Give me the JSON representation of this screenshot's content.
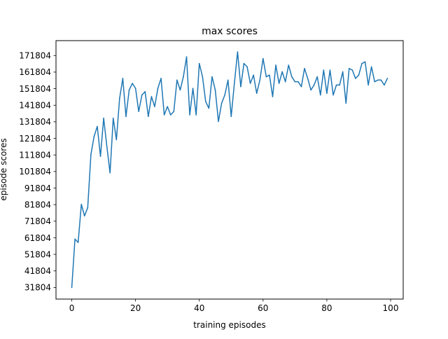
{
  "chart_data": {
    "type": "line",
    "title": "max scores",
    "xlabel": "training episodes",
    "ylabel": "episode scores",
    "xlim": [
      -4.95,
      103.95
    ],
    "ylim": [
      24803,
      180803
    ],
    "x_ticks": [
      0,
      20,
      40,
      60,
      80,
      100
    ],
    "y_ticks": [
      31804,
      41804,
      51804,
      61804,
      71804,
      81804,
      91804,
      101804,
      111804,
      121804,
      131804,
      141804,
      151804,
      161804,
      171804
    ],
    "line_color": "#1f77b4",
    "grid": false,
    "series": [
      {
        "x": [
          0,
          1,
          2,
          3,
          4,
          5,
          6,
          7,
          8,
          9,
          10,
          11,
          12,
          13,
          14,
          15,
          16,
          17,
          18,
          19,
          20,
          21,
          22,
          23,
          24,
          25,
          26,
          27,
          28,
          29,
          30,
          31,
          32,
          33,
          34,
          35,
          36,
          37,
          38,
          39,
          40,
          41,
          42,
          43,
          44,
          45,
          46,
          47,
          48,
          49,
          50,
          51,
          52,
          53,
          54,
          55,
          56,
          57,
          58,
          59,
          60,
          61,
          62,
          63,
          64,
          65,
          66,
          67,
          68,
          69,
          70,
          71,
          72,
          73,
          74,
          75,
          76,
          77,
          78,
          79,
          80,
          81,
          82,
          83,
          84,
          85,
          86,
          87,
          88,
          89,
          90,
          91,
          92,
          93,
          94,
          95,
          96,
          97,
          98,
          99
        ],
        "values": [
          31804,
          61000,
          59000,
          82000,
          75000,
          80000,
          112000,
          123000,
          129000,
          111000,
          134000,
          117000,
          101000,
          134000,
          121000,
          146000,
          158000,
          135000,
          151000,
          155000,
          152000,
          138000,
          148000,
          150000,
          135000,
          147000,
          141000,
          152000,
          158000,
          136000,
          141000,
          136000,
          138000,
          157000,
          151000,
          159000,
          171000,
          136000,
          152000,
          136000,
          167000,
          159000,
          144000,
          140000,
          159000,
          151000,
          132000,
          143000,
          148000,
          157000,
          135000,
          155000,
          174000,
          153000,
          167000,
          165000,
          155000,
          160000,
          149000,
          157000,
          170000,
          159000,
          160000,
          147000,
          166000,
          155000,
          162000,
          156000,
          166000,
          159000,
          156000,
          156000,
          153000,
          164000,
          158000,
          151000,
          154000,
          159000,
          148000,
          163000,
          149000,
          163000,
          148000,
          154000,
          154000,
          162000,
          143000,
          164000,
          163000,
          158000,
          160000,
          167000,
          168000,
          154000,
          165000,
          156000,
          157000,
          157000,
          154000,
          158000
        ]
      }
    ]
  }
}
